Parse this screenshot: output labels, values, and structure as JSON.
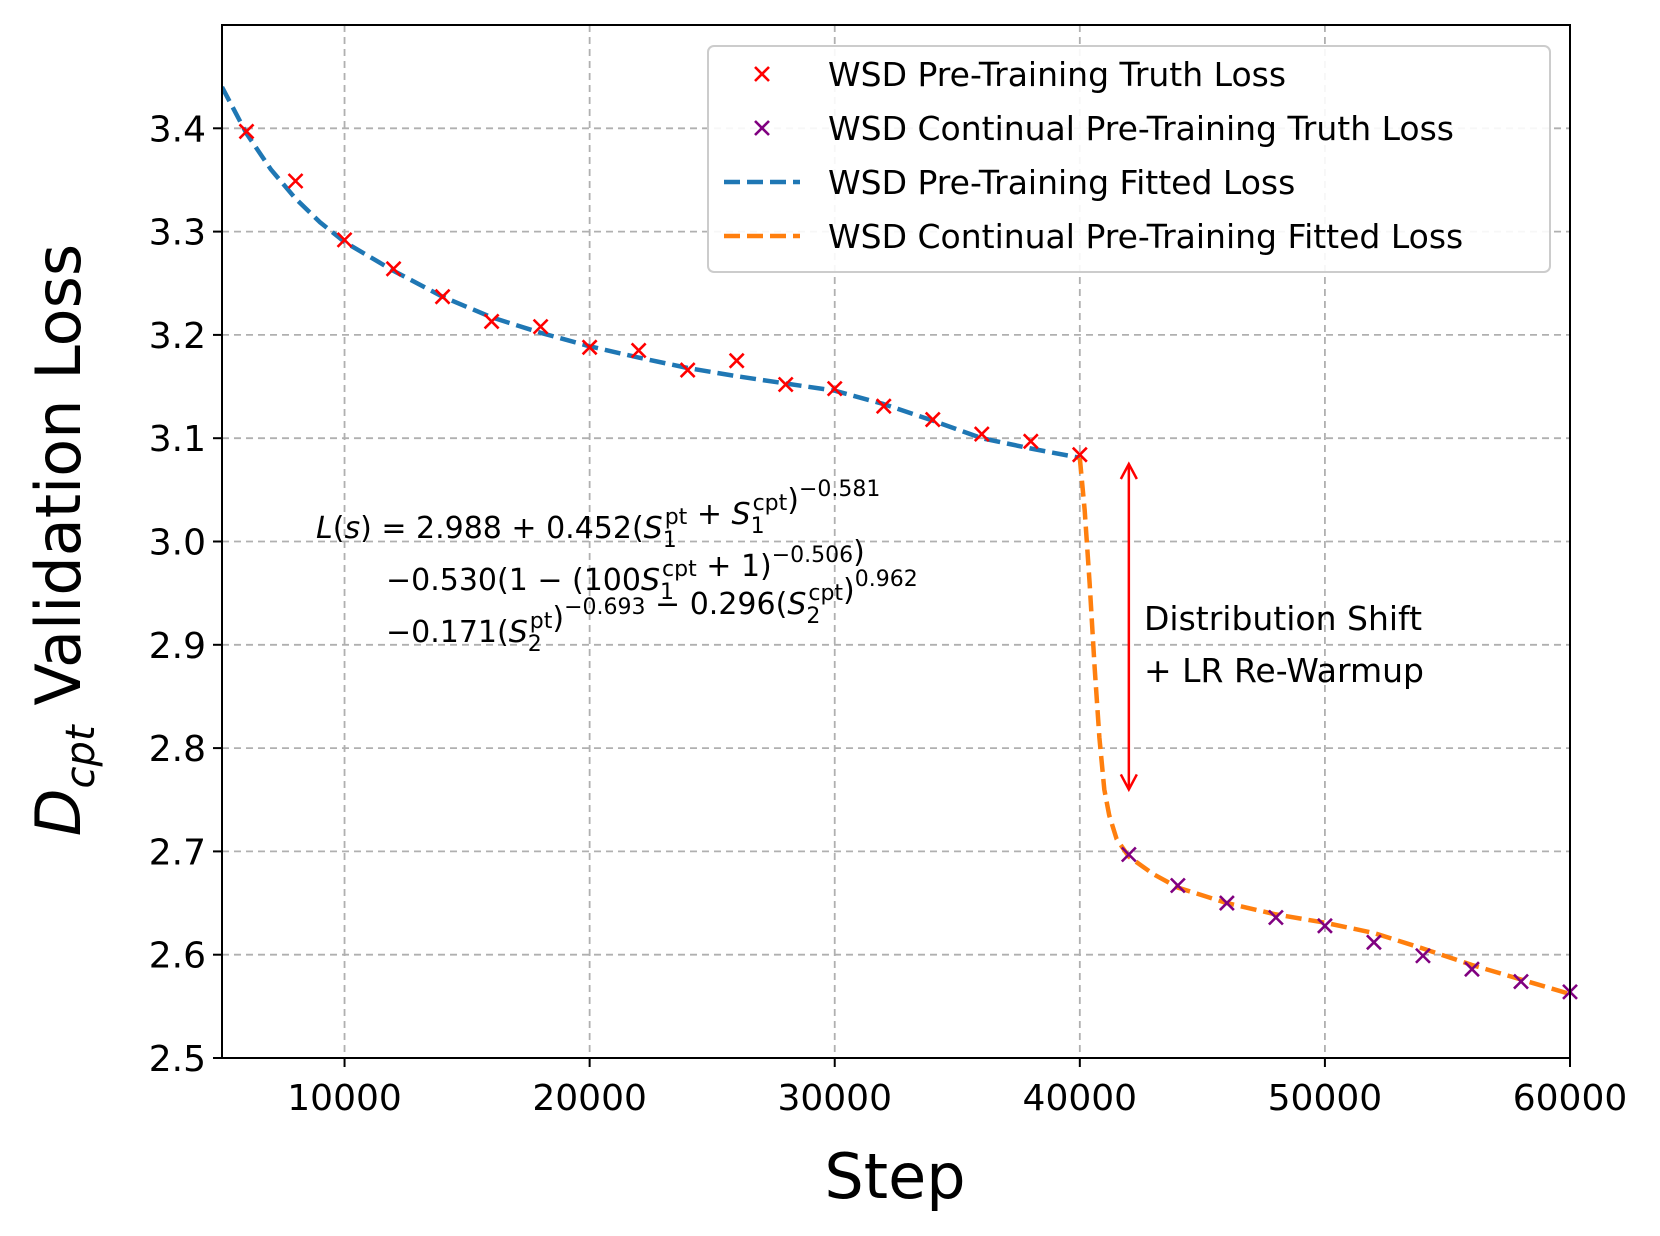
{
  "chart_data": {
    "type": "line",
    "title": "",
    "xlabel": "Step",
    "ylabel_main": "D",
    "ylabel_sub": "cpt",
    "ylabel_rest": " Validation Loss",
    "xlim": [
      5000,
      60000
    ],
    "ylim": [
      2.5,
      3.5
    ],
    "xticks": [
      10000,
      20000,
      30000,
      40000,
      50000,
      60000
    ],
    "yticks": [
      2.5,
      2.6,
      2.7,
      2.8,
      2.9,
      3.0,
      3.1,
      3.2,
      3.3,
      3.4
    ],
    "xtick_labels": [
      "10000",
      "20000",
      "30000",
      "40000",
      "50000",
      "60000"
    ],
    "ytick_labels": [
      "2.5",
      "2.6",
      "2.7",
      "2.8",
      "2.9",
      "3.0",
      "3.1",
      "3.2",
      "3.3",
      "3.4"
    ],
    "grid": true,
    "legend_position": "top-right",
    "series": [
      {
        "name": "WSD Pre-Training Truth Loss",
        "kind": "scatter",
        "marker": "x",
        "color": "#ff0000",
        "x": [
          6000,
          8000,
          10000,
          12000,
          14000,
          16000,
          18000,
          20000,
          22000,
          24000,
          26000,
          28000,
          30000,
          32000,
          34000,
          36000,
          38000,
          40000
        ],
        "y": [
          3.397,
          3.349,
          3.292,
          3.264,
          3.237,
          3.213,
          3.208,
          3.188,
          3.185,
          3.166,
          3.175,
          3.152,
          3.148,
          3.131,
          3.118,
          3.104,
          3.097,
          3.084
        ]
      },
      {
        "name": "WSD Continual Pre-Training Truth Loss",
        "kind": "scatter",
        "marker": "x",
        "color": "#800080",
        "x": [
          42000,
          44000,
          46000,
          48000,
          50000,
          52000,
          54000,
          56000,
          58000,
          60000
        ],
        "y": [
          2.697,
          2.667,
          2.65,
          2.636,
          2.628,
          2.612,
          2.599,
          2.586,
          2.574,
          2.564
        ]
      },
      {
        "name": "WSD Pre-Training Fitted Loss",
        "kind": "line",
        "dash": true,
        "color": "#1f77b4",
        "x": [
          5000,
          6000,
          7000,
          8000,
          9000,
          10000,
          12000,
          14000,
          16000,
          18000,
          20000,
          22000,
          24000,
          26000,
          28000,
          30000,
          32000,
          34000,
          36000,
          38000,
          40000
        ],
        "y": [
          3.44,
          3.395,
          3.36,
          3.332,
          3.309,
          3.29,
          3.262,
          3.237,
          3.217,
          3.202,
          3.189,
          3.178,
          3.168,
          3.16,
          3.153,
          3.146,
          3.133,
          3.117,
          3.1,
          3.09,
          3.081
        ]
      },
      {
        "name": "WSD Continual Pre-Training Fitted Loss",
        "kind": "line",
        "dash": true,
        "color": "#ff7f0e",
        "x": [
          40000,
          40200,
          40400,
          40600,
          40800,
          41000,
          41200,
          41500,
          42000,
          43000,
          44000,
          46000,
          48000,
          50000,
          52000,
          54000,
          56000,
          58000,
          60000
        ],
        "y": [
          3.081,
          3.03,
          2.96,
          2.88,
          2.81,
          2.76,
          2.735,
          2.712,
          2.695,
          2.678,
          2.665,
          2.65,
          2.639,
          2.631,
          2.621,
          2.606,
          2.59,
          2.576,
          2.562
        ]
      }
    ],
    "annotations": {
      "arrow": {
        "x": 42000,
        "y_top": 3.075,
        "y_bottom": 2.76,
        "color": "#ff0000"
      },
      "arrow_label_line1": "Distribution Shift",
      "arrow_label_line2": "+ LR Re-Warmup",
      "formula": {
        "line1": "L(s) = 2.988 + 0.452(S1pt + S1cpt)−0.581",
        "line2": "−0.530(1 − (100S1cpt + 1)−0.506)",
        "line3": "−0.171(S2pt)−0.693 − 0.296(S2cpt)0.962"
      }
    }
  }
}
